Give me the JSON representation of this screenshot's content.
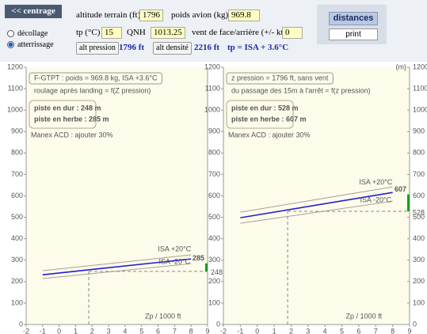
{
  "toolbar": {
    "centrage_button": "<< centrage",
    "mode_options": [
      "décollage",
      "atterrissage"
    ],
    "mode_selected": 1,
    "altitude_label": "altitude terrain (ft)",
    "altitude_value": "1796",
    "poids_label": "poids avion (kg)",
    "poids_value": "969.8",
    "tp_label": "tp (°C)",
    "tp_value": "15",
    "qnh_label": "QNH",
    "qnh_value": "1013.25",
    "vent_label": "vent de face/arrière (+/- kt)",
    "vent_value": "0",
    "alt_pression_button": "alt pression",
    "alt_pression_result": "1796 ft",
    "alt_densite_button": "alt densité",
    "alt_densite_result": "2216 ft",
    "tp_result": "tp = ISA + 3.6°C",
    "distances_button": "distances",
    "print_button": "print"
  },
  "charts": [
    {
      "title": "F-GTPT : poids = 969.8 kg, ISA +3.6°C",
      "subtitle": "roulage après landing = f(Z pression)",
      "results_box": [
        "piste en dur : 248 m",
        "piste en herbe : 285 m"
      ],
      "note": "Manex ACD : ajouter 30%",
      "xlabel": "Zp / 1000 ft",
      "xlim": [
        -2,
        9
      ],
      "ylim": [
        0,
        1200
      ],
      "xticks": [
        -2,
        -1,
        0,
        1,
        2,
        3,
        4,
        5,
        6,
        7,
        8,
        9
      ],
      "yticks": [
        0,
        100,
        200,
        300,
        400,
        500,
        600,
        700,
        800,
        900,
        1000,
        1100,
        1200
      ],
      "ytick_label_sides": [
        "left"
      ],
      "series": [
        {
          "name": "ISA +20°C",
          "color": "#a8a098",
          "x": [
            -1,
            8
          ],
          "values": [
            251,
            325
          ]
        },
        {
          "color": "#2020d0",
          "x": [
            -1,
            8
          ],
          "values": [
            232,
            306
          ]
        },
        {
          "name": "ISA -20°C",
          "color": "#a8a098",
          "x": [
            -1,
            8
          ],
          "values": [
            214,
            284
          ]
        }
      ],
      "zp": 1.796,
      "result": {
        "dur": 248,
        "herbe": 285
      }
    },
    {
      "title": "z pression = 1796 ft, sans vent",
      "subtitle": "du passage des 15m à l'arrêt = f(z pression)",
      "results_box": [
        "piste en dur : 528 m",
        "piste en herbe : 607 m"
      ],
      "note": "Manex ACD : ajouter 30%",
      "xlabel": "Zp / 1000 ft",
      "unit": "(m)",
      "xlim": [
        -2,
        9
      ],
      "ylim": [
        0,
        1200
      ],
      "xticks": [
        -2,
        -1,
        0,
        1,
        2,
        3,
        4,
        5,
        6,
        7,
        8,
        9
      ],
      "yticks": [
        0,
        100,
        200,
        300,
        400,
        500,
        600,
        700,
        800,
        900,
        1000,
        1100,
        1200
      ],
      "ytick_label_sides": [
        "left",
        "right"
      ],
      "series": [
        {
          "name": "ISA +20°C",
          "color": "#a8a098",
          "x": [
            -1,
            8
          ],
          "values": [
            524,
            642
          ]
        },
        {
          "color": "#2020d0",
          "x": [
            -1,
            8
          ],
          "values": [
            498,
            616
          ]
        },
        {
          "name": "ISA -20°C",
          "color": "#a8a098",
          "x": [
            -1,
            8
          ],
          "values": [
            472,
            575
          ]
        }
      ],
      "zp": 1.796,
      "result": {
        "dur": 528,
        "herbe": 607
      }
    }
  ]
}
